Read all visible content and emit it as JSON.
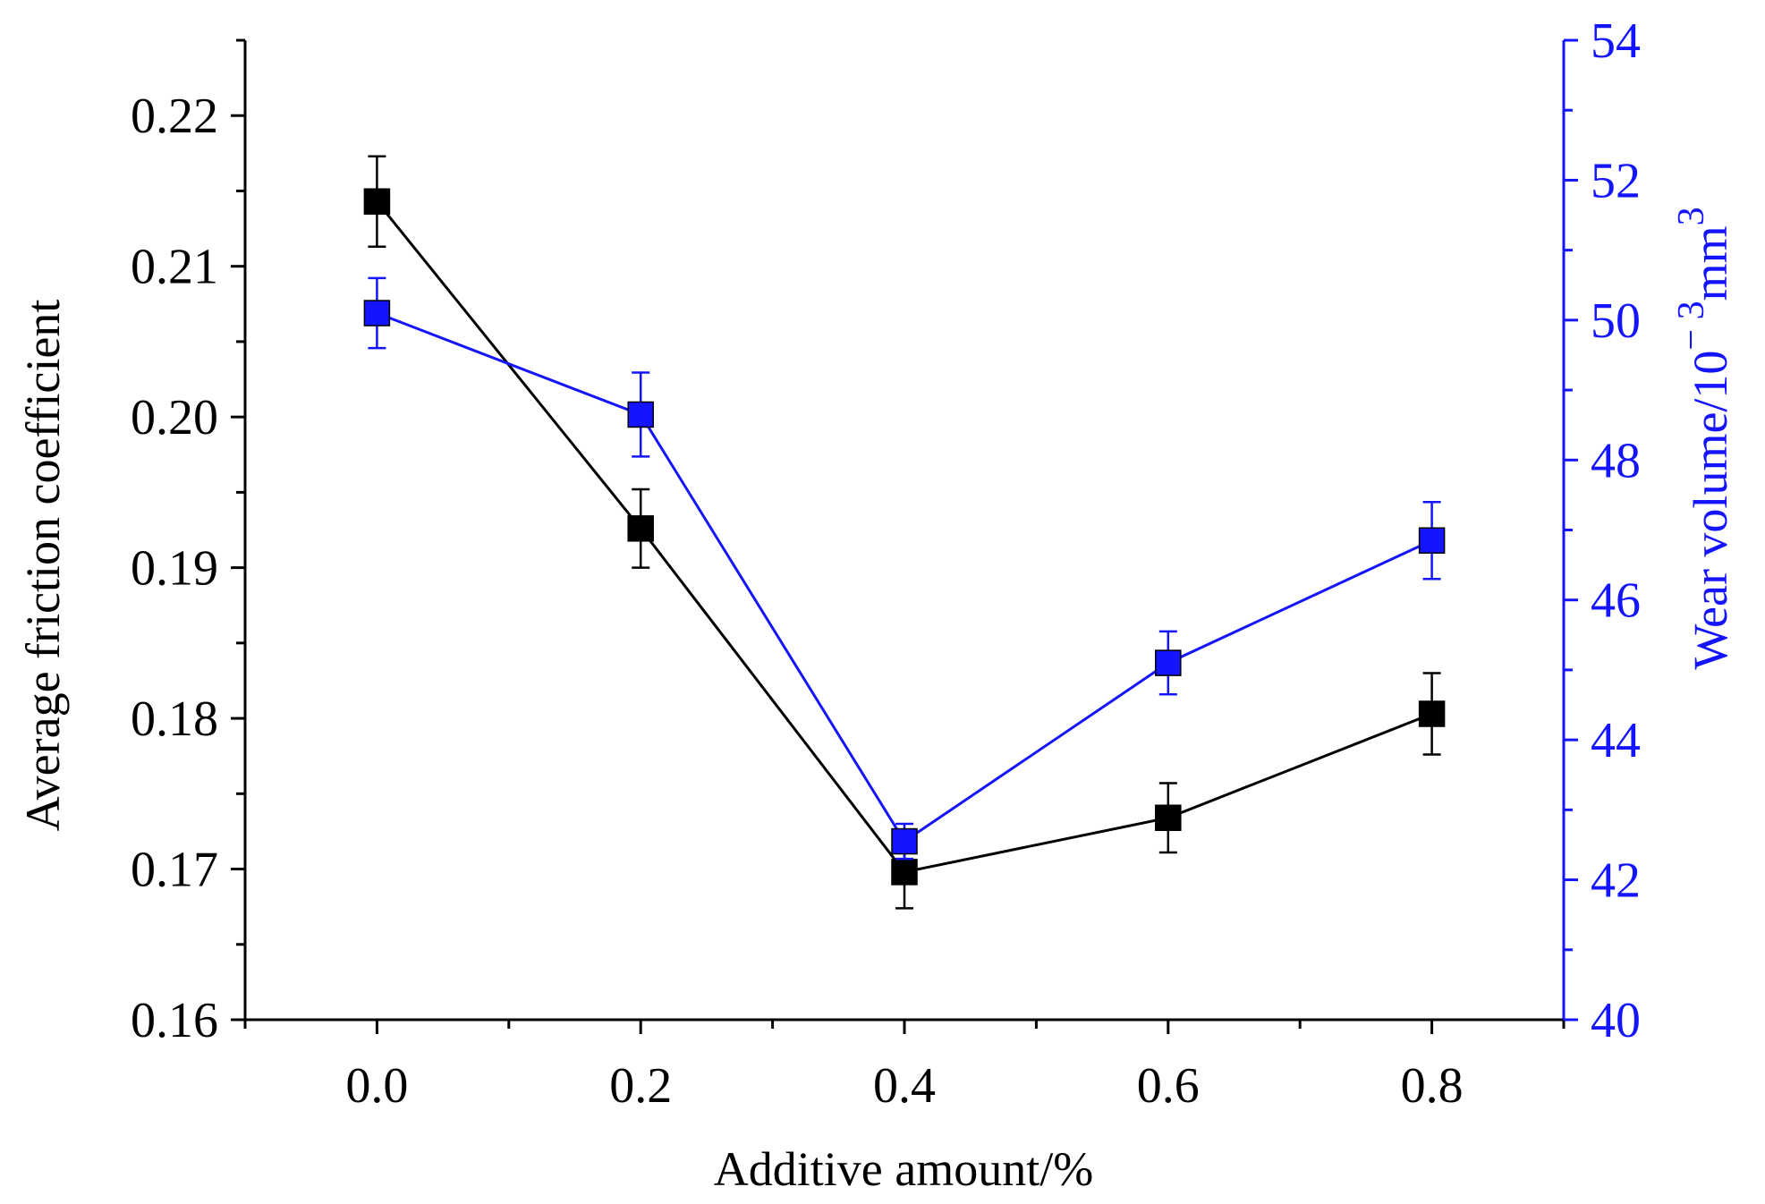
{
  "chart_data": {
    "type": "line",
    "title": "",
    "xlabel": "Additive amount/%",
    "ylabel_left": "Average friction coefficient",
    "ylabel_right": {
      "base": "Wear volume/10",
      "exponent": "− 3",
      "unit": "mm",
      "unit_exponent": "3"
    },
    "x": [
      0.0,
      0.2,
      0.4,
      0.6,
      0.8
    ],
    "xlim": [
      -0.1,
      0.9
    ],
    "x_ticks": [
      "0.0",
      "0.2",
      "0.4",
      "0.6",
      "0.8"
    ],
    "ylim_left": [
      0.16,
      0.225
    ],
    "y_ticks_left": [
      "0.16",
      "0.17",
      "0.18",
      "0.19",
      "0.20",
      "0.21",
      "0.22"
    ],
    "ylim_right": [
      40,
      54
    ],
    "y_ticks_right": [
      "40",
      "42",
      "44",
      "46",
      "48",
      "50",
      "52",
      "54"
    ],
    "grid": false,
    "series": [
      {
        "name": "Average friction coefficient",
        "axis": "left",
        "color": "#000000",
        "marker": "square",
        "values": [
          0.2143,
          0.1926,
          0.1698,
          0.1734,
          0.1803
        ],
        "error": [
          0.003,
          0.0026,
          0.0024,
          0.0023,
          0.0027
        ]
      },
      {
        "name": "Wear volume",
        "axis": "right",
        "color": "#1414ff",
        "marker": "square",
        "values": [
          50.1,
          48.65,
          42.55,
          45.1,
          46.85
        ],
        "error": [
          0.5,
          0.6,
          0.25,
          0.45,
          0.55
        ]
      }
    ]
  }
}
